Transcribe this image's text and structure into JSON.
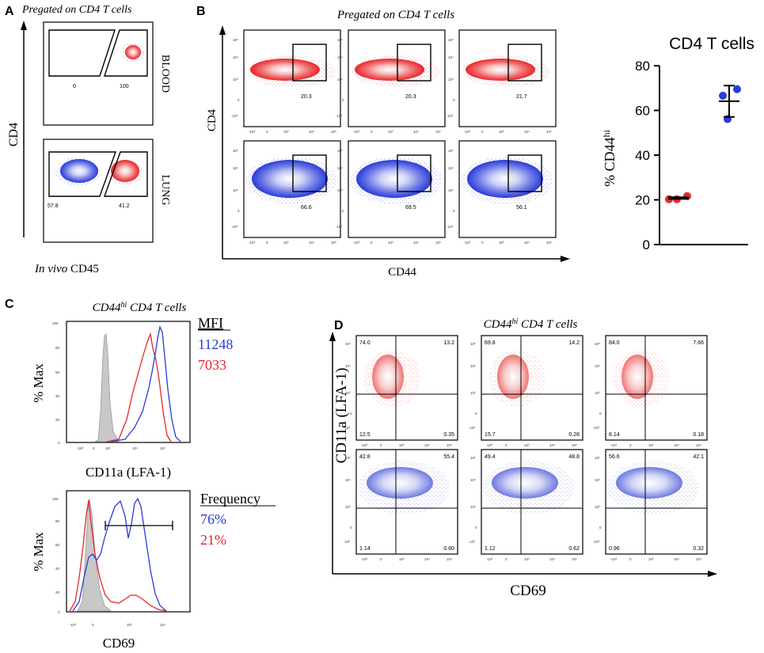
{
  "colors": {
    "red": "#e8262a",
    "blue": "#2a3bd9",
    "gray": "#c8c8c8",
    "black": "#000000"
  },
  "panel_a": {
    "letter": "A",
    "title": "Pregated on CD4 T cells",
    "y_label": "CD4",
    "x_label_italic": "In vivo",
    "x_label_rest": " CD45",
    "rows": [
      {
        "tissue": "BLOOD",
        "gate_left": "0",
        "gate_right": "100"
      },
      {
        "tissue": "LUNG",
        "gate_left": "57.8",
        "gate_right": "41.2"
      }
    ]
  },
  "panel_b": {
    "letter": "B",
    "title": "Pregated on CD4 T cells",
    "y_label": "CD4",
    "x_label": "CD44",
    "row1_values": [
      "20.3",
      "20.3",
      "21.7"
    ],
    "row2_values": [
      "66.6",
      "69.5",
      "56.1"
    ]
  },
  "panel_c": {
    "letter": "C",
    "title_main": "CD44",
    "title_sup": "hi",
    "title_rest": " CD4 T cells",
    "hist1": {
      "y_label": "% Max",
      "x_label": "CD11a (LFA-1)",
      "legend_title": "MFI",
      "blue_value": "11248",
      "red_value": "7033"
    },
    "hist2": {
      "y_label": "% Max",
      "x_label": "CD69",
      "legend_title": "Frequency",
      "blue_value": "76%",
      "red_value": "21%"
    }
  },
  "panel_d": {
    "letter": "D",
    "title_main": "CD44",
    "title_sup": "hi",
    "title_rest": " CD4 T cells",
    "y_label": "CD11a (LFA-1)",
    "x_label": "CD69",
    "quadrants": [
      {
        "row": 0,
        "col": 0,
        "ul": "74.0",
        "ur": "13.2",
        "ll": "12.5",
        "lr": "0.35"
      },
      {
        "row": 0,
        "col": 1,
        "ul": "69.8",
        "ur": "14.2",
        "ll": "15.7",
        "lr": "0.28"
      },
      {
        "row": 0,
        "col": 2,
        "ul": "84.0",
        "ur": "7.66",
        "ll": "8.14",
        "lr": "0.18"
      },
      {
        "row": 1,
        "col": 0,
        "ul": "42.8",
        "ur": "55.4",
        "ll": "1.14",
        "lr": "0.60"
      },
      {
        "row": 1,
        "col": 1,
        "ul": "49.4",
        "ur": "48.8",
        "ll": "1.12",
        "lr": "0.62"
      },
      {
        "row": 1,
        "col": 2,
        "ul": "56.6",
        "ur": "42.1",
        "ll": "0.96",
        "lr": "0.32"
      }
    ]
  },
  "chart_data": {
    "type": "scatter",
    "title": "CD4 T cells",
    "ylabel_main": "% CD44",
    "ylabel_sup": "hi",
    "xlabel": "",
    "ylim": [
      0,
      80
    ],
    "yticks": [
      "0",
      "20",
      "40",
      "60",
      "80"
    ],
    "series": [
      {
        "name": "blood",
        "color": "#e8262a",
        "values": [
          20.3,
          20.3,
          21.7
        ],
        "mean": 20.8,
        "sd": 0.8
      },
      {
        "name": "lung",
        "color": "#2a3bd9",
        "values": [
          66.6,
          69.5,
          56.1
        ],
        "mean": 64.1,
        "sd": 7.0
      }
    ]
  }
}
